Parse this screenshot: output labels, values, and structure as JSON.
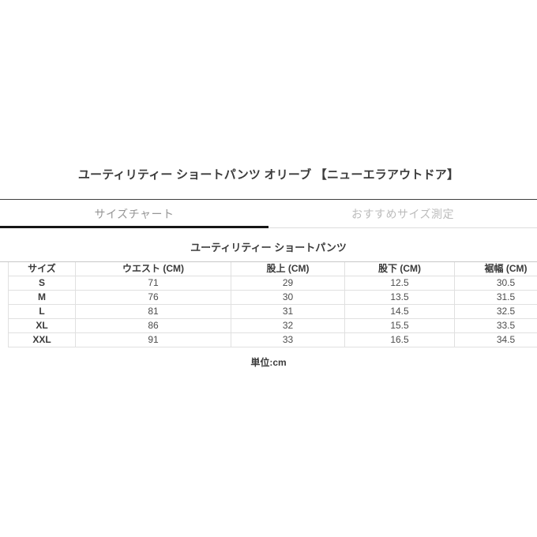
{
  "page": {
    "product_title": "ユーティリティー ショートパンツ オリーブ 【ニューエラアウトドア】",
    "tabs": [
      {
        "id": "size-chart",
        "label": "サイズチャート",
        "active": true
      },
      {
        "id": "recommended-size",
        "label": "おすすめサイズ測定",
        "active": false
      }
    ],
    "size_chart": {
      "title": "ユーティリティー ショートパンツ",
      "columns": [
        "サイズ",
        "ウエスト (CM)",
        "股上 (CM)",
        "股下 (CM)",
        "裾幅 (CM)"
      ],
      "rows": [
        {
          "size": "S",
          "values": [
            "71",
            "29",
            "12.5",
            "30.5"
          ]
        },
        {
          "size": "M",
          "values": [
            "76",
            "30",
            "13.5",
            "31.5"
          ]
        },
        {
          "size": "L",
          "values": [
            "81",
            "31",
            "14.5",
            "32.5"
          ]
        },
        {
          "size": "XL",
          "values": [
            "86",
            "32",
            "15.5",
            "33.5"
          ]
        },
        {
          "size": "XXL",
          "values": [
            "91",
            "33",
            "16.5",
            "34.5"
          ]
        }
      ],
      "unit_note": "単位:cm"
    },
    "colors": {
      "background": "#ffffff",
      "heading_text": "#3b3b3b",
      "tab_text_active": "#969696",
      "tab_text_inactive": "#bcbcbc",
      "active_tab_underline": "#161616",
      "tab_bar_top_border": "#3e3e3e",
      "table_border": "#e0e0e0",
      "table_top_rule": "#c8c8c8",
      "table_value_text": "#4d4d4d"
    }
  }
}
